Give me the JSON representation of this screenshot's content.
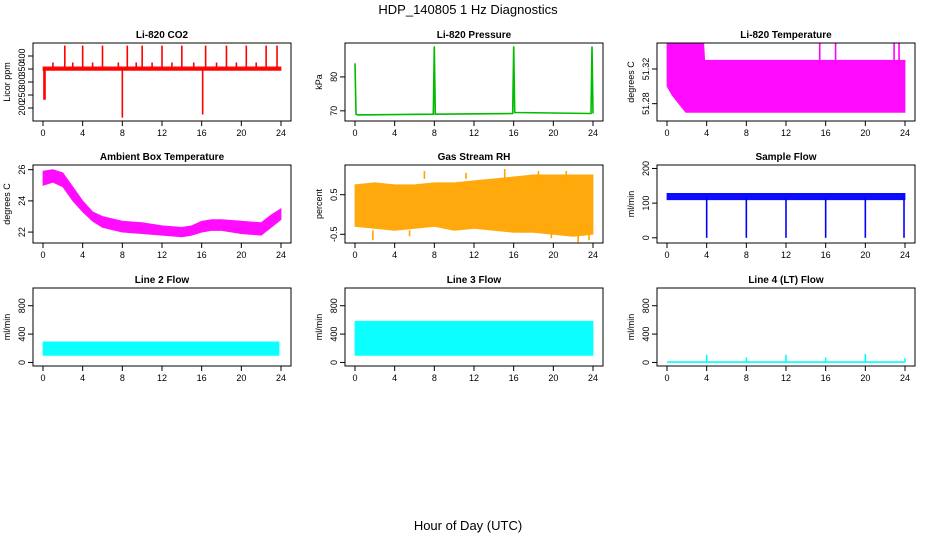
{
  "title": "HDP_140805  1 Hz Diagnostics",
  "xlabel": "Hour of Day (UTC)",
  "chart_data": [
    {
      "type": "line",
      "title": "Li-820 CO2",
      "ylabel": "Licor ppm",
      "color": "#ff0000",
      "xlim": [
        0,
        24
      ],
      "ylim": [
        150,
        450
      ],
      "xticks": [
        "0",
        "4",
        "8",
        "12",
        "16",
        "20",
        "24"
      ],
      "yticks": [
        200,
        250,
        300,
        350,
        400
      ],
      "ytick_labels": [
        "200",
        "250",
        "300",
        "350",
        "400"
      ],
      "band": {
        "x": [
          0,
          24
        ],
        "low": [
          345,
          345
        ],
        "high": [
          358,
          358
        ]
      },
      "series": [
        {
          "name": "",
          "x": [
            0,
            0.1,
            0.1,
            0.2,
            0.2,
            24
          ],
          "y": [
            350,
            350,
            235,
            235,
            350,
            350
          ]
        }
      ],
      "spikes_up": {
        "x": [
          1.0,
          2.2,
          3.0,
          4.0,
          5.0,
          6.0,
          7.6,
          8.5,
          9.4,
          10.0,
          11.0,
          12.0,
          13.0,
          14.0,
          15.2,
          16.4,
          17.5,
          18.5,
          19.5,
          20.5,
          21.5,
          22.5,
          23.6
        ],
        "base": 350,
        "top": [
          375,
          440,
          375,
          440,
          375,
          440,
          375,
          440,
          375,
          440,
          375,
          440,
          375,
          440,
          375,
          440,
          375,
          440,
          375,
          440,
          375,
          440,
          440
        ]
      },
      "spikes_down": {
        "x": [
          8.0,
          16.1
        ],
        "base": 350,
        "bottom": [
          163,
          175
        ]
      }
    },
    {
      "type": "line",
      "title": "Li-820 Pressure",
      "ylabel": "kPa",
      "color": "#00bb00",
      "xlim": [
        0,
        24
      ],
      "ylim": [
        67,
        90
      ],
      "xticks": [
        "0",
        "4",
        "8",
        "12",
        "16",
        "20",
        "24"
      ],
      "yticks": [
        70,
        80
      ],
      "ytick_labels": [
        "70",
        "80"
      ],
      "series": [
        {
          "name": "",
          "x": [
            0,
            0.1,
            0.3,
            7.9,
            8.0,
            8.1,
            15.9,
            16.0,
            16.1,
            23.8,
            23.9,
            24
          ],
          "y": [
            84,
            69,
            68.8,
            69.0,
            89,
            69.0,
            69.2,
            89,
            69.5,
            69.2,
            89,
            69.2
          ]
        }
      ]
    },
    {
      "type": "area",
      "title": "Li-820 Temperature",
      "ylabel": "degrees C",
      "color": "#ff00ff",
      "xlim": [
        0,
        24
      ],
      "ylim": [
        51.26,
        51.35
      ],
      "xticks": [
        "0",
        "4",
        "8",
        "12",
        "16",
        "20",
        "24"
      ],
      "yticks": [
        51.28,
        51.32
      ],
      "ytick_labels": [
        "51.28",
        "51.32"
      ],
      "band": {
        "x": [
          0,
          0.5,
          1.2,
          1.9,
          3.7,
          3.8,
          24
        ],
        "low": [
          51.3,
          51.29,
          51.28,
          51.27,
          51.27,
          51.27,
          51.27
        ],
        "high": [
          51.35,
          51.35,
          51.35,
          51.35,
          51.35,
          51.33,
          51.33
        ]
      },
      "spikes_up": {
        "x": [
          15.4,
          17.0,
          22.9,
          23.4
        ],
        "base": 51.33,
        "top": [
          51.35,
          51.35,
          51.35,
          51.35
        ]
      }
    },
    {
      "type": "area",
      "title": "Ambient Box Temperature",
      "ylabel": "degrees C",
      "color": "#ff00ff",
      "xlim": [
        0,
        24
      ],
      "ylim": [
        21.3,
        26.3
      ],
      "xticks": [
        "0",
        "4",
        "8",
        "12",
        "16",
        "20",
        "24"
      ],
      "yticks": [
        22,
        24,
        26
      ],
      "ytick_labels": [
        "22",
        "24",
        "26"
      ],
      "band": {
        "x": [
          0,
          1,
          2,
          3,
          4,
          5,
          6,
          8,
          10,
          12,
          14,
          15,
          16,
          17,
          18,
          20,
          22,
          23,
          24
        ],
        "low": [
          25.0,
          25.2,
          24.9,
          24.0,
          23.3,
          22.7,
          22.3,
          22.0,
          21.9,
          21.8,
          21.7,
          21.8,
          22.0,
          22.1,
          22.1,
          21.9,
          21.8,
          22.3,
          22.8
        ],
        "high": [
          25.9,
          26.0,
          25.8,
          24.9,
          24.0,
          23.3,
          23.0,
          22.7,
          22.6,
          22.4,
          22.3,
          22.4,
          22.7,
          22.8,
          22.8,
          22.7,
          22.6,
          23.1,
          23.5
        ]
      }
    },
    {
      "type": "area",
      "title": "Gas Stream RH",
      "ylabel": "percent",
      "color": "#ffa500",
      "xlim": [
        0,
        24
      ],
      "ylim": [
        -0.72,
        1.25
      ],
      "xticks": [
        "0",
        "4",
        "8",
        "12",
        "16",
        "20",
        "24"
      ],
      "yticks": [
        -0.5,
        0.5
      ],
      "ytick_labels": [
        "-0.5",
        "0.5"
      ],
      "band": {
        "x": [
          0,
          2,
          4,
          6,
          8,
          10,
          12,
          14,
          16,
          18,
          20,
          22,
          24
        ],
        "low": [
          -0.3,
          -0.35,
          -0.4,
          -0.35,
          -0.3,
          -0.4,
          -0.35,
          -0.4,
          -0.45,
          -0.45,
          -0.5,
          -0.55,
          -0.5
        ],
        "high": [
          0.75,
          0.8,
          0.75,
          0.75,
          0.8,
          0.8,
          0.85,
          0.9,
          0.95,
          1.0,
          1.0,
          1.0,
          1.0
        ]
      },
      "spikes_up": {
        "x": [
          7.0,
          11.2,
          15.1,
          18.5,
          21.3
        ],
        "base": 0.9,
        "top": [
          1.1,
          1.05,
          1.15,
          1.1,
          1.1
        ]
      },
      "spikes_down": {
        "x": [
          1.8,
          5.5,
          19.8,
          22.5,
          23.6
        ],
        "base": -0.4,
        "bottom": [
          -0.65,
          -0.55,
          -0.6,
          -0.7,
          -0.65
        ]
      }
    },
    {
      "type": "line",
      "title": "Sample Flow",
      "ylabel": "ml/min",
      "color": "#0000ff",
      "xlim": [
        0,
        24
      ],
      "ylim": [
        -15,
        210
      ],
      "xticks": [
        "0",
        "4",
        "8",
        "12",
        "16",
        "20",
        "24"
      ],
      "yticks": [
        0,
        100,
        200
      ],
      "ytick_labels": [
        "0",
        "100",
        "200"
      ],
      "band": {
        "x": [
          0,
          24
        ],
        "low": [
          110,
          110
        ],
        "high": [
          128,
          128
        ]
      },
      "spikes_down": {
        "x": [
          4.0,
          8.0,
          12.0,
          16.0,
          20.0,
          23.9
        ],
        "base": 115,
        "bottom": [
          0,
          0,
          0,
          0,
          0,
          0
        ]
      }
    },
    {
      "type": "area",
      "title": "Line 2 Flow",
      "ylabel": "ml/min",
      "color": "#00ffff",
      "xlim": [
        0,
        24
      ],
      "ylim": [
        -50,
        1050
      ],
      "xticks": [
        "0",
        "4",
        "8",
        "12",
        "16",
        "20",
        "24"
      ],
      "yticks": [
        0,
        400,
        800
      ],
      "ytick_labels": [
        "0",
        "400",
        "800"
      ],
      "band": {
        "x": [
          0,
          23.8
        ],
        "low": [
          100,
          100
        ],
        "high": [
          290,
          290
        ]
      }
    },
    {
      "type": "area",
      "title": "Line 3 Flow",
      "ylabel": "ml/min",
      "color": "#00ffff",
      "xlim": [
        0,
        24
      ],
      "ylim": [
        -50,
        1050
      ],
      "xticks": [
        "0",
        "4",
        "8",
        "12",
        "16",
        "20",
        "24"
      ],
      "yticks": [
        0,
        400,
        800
      ],
      "ytick_labels": [
        "0",
        "400",
        "800"
      ],
      "band": {
        "x": [
          0,
          24
        ],
        "low": [
          100,
          100
        ],
        "high": [
          580,
          580
        ]
      }
    },
    {
      "type": "line",
      "title": "Line 4 (LT) Flow",
      "ylabel": "ml/min",
      "color": "#00ffff",
      "xlim": [
        0,
        24
      ],
      "ylim": [
        -50,
        1050
      ],
      "xticks": [
        "0",
        "4",
        "8",
        "12",
        "16",
        "20",
        "24"
      ],
      "yticks": [
        0,
        400,
        800
      ],
      "ytick_labels": [
        "0",
        "400",
        "800"
      ],
      "series": [
        {
          "name": "",
          "x": [
            0,
            24
          ],
          "y": [
            5,
            5
          ]
        }
      ],
      "spikes_up": {
        "x": [
          4.0,
          8.0,
          12.0,
          16.0,
          20.0,
          24.0
        ],
        "base": 5,
        "top": [
          110,
          70,
          110,
          70,
          120,
          60
        ]
      }
    }
  ]
}
